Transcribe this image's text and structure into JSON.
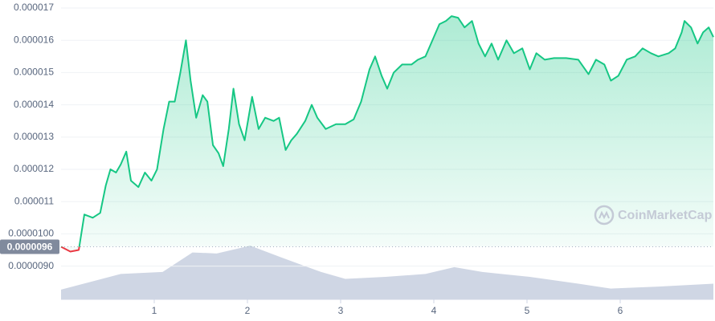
{
  "chart_data": [
    {
      "type": "line",
      "xlim": [
        0,
        7
      ],
      "xticks": [
        1,
        2,
        3,
        4,
        5,
        6
      ],
      "ylim": [
        7.97e-06,
        1.725e-05
      ],
      "yticks": [
        {
          "value": 9e-06,
          "label": "0.0000090"
        },
        {
          "value": 1e-05,
          "label": "0.0000100"
        },
        1.1e-05,
        1.2e-05,
        1.3e-05,
        1.4e-05,
        1.5e-05,
        1.6e-05,
        1.7e-05
      ],
      "grid": true,
      "current_price": 9.6e-06,
      "up_color": "#16c784",
      "down_color": "#ea3943",
      "watermark": "CoinMarketCap",
      "x": [
        0,
        0.1,
        0.19,
        0.25,
        0.34,
        0.42,
        0.48,
        0.53,
        0.59,
        0.64,
        0.7,
        0.75,
        0.83,
        0.9,
        0.97,
        1.03,
        1.1,
        1.16,
        1.22,
        1.28,
        1.34,
        1.39,
        1.45,
        1.52,
        1.57,
        1.63,
        1.69,
        1.74,
        1.8,
        1.85,
        1.91,
        1.97,
        2.05,
        2.12,
        2.19,
        2.28,
        2.34,
        2.41,
        2.47,
        2.53,
        2.62,
        2.69,
        2.75,
        2.84,
        2.95,
        3.05,
        3.14,
        3.22,
        3.31,
        3.37,
        3.44,
        3.5,
        3.57,
        3.66,
        3.76,
        3.83,
        3.91,
        4.0,
        4.06,
        4.13,
        4.19,
        4.26,
        4.33,
        4.41,
        4.48,
        4.55,
        4.62,
        4.69,
        4.78,
        4.86,
        4.95,
        5.03,
        5.1,
        5.19,
        5.29,
        5.42,
        5.55,
        5.66,
        5.74,
        5.83,
        5.9,
        5.98,
        6.07,
        6.16,
        6.24,
        6.33,
        6.41,
        6.52,
        6.59,
        6.66,
        6.69,
        6.76,
        6.83,
        6.89,
        6.95,
        7.0
      ],
      "values": [
        9.6e-06,
        9.45e-06,
        9.5e-06,
        1.06e-05,
        1.05e-05,
        1.065e-05,
        1.15e-05,
        1.2e-05,
        1.19e-05,
        1.215e-05,
        1.255e-05,
        1.165e-05,
        1.145e-05,
        1.19e-05,
        1.165e-05,
        1.2e-05,
        1.325e-05,
        1.41e-05,
        1.41e-05,
        1.5e-05,
        1.6e-05,
        1.475e-05,
        1.36e-05,
        1.43e-05,
        1.41e-05,
        1.275e-05,
        1.25e-05,
        1.21e-05,
        1.325e-05,
        1.45e-05,
        1.34e-05,
        1.29e-05,
        1.425e-05,
        1.325e-05,
        1.36e-05,
        1.35e-05,
        1.36e-05,
        1.26e-05,
        1.29e-05,
        1.31e-05,
        1.35e-05,
        1.4e-05,
        1.36e-05,
        1.325e-05,
        1.34e-05,
        1.34e-05,
        1.355e-05,
        1.41e-05,
        1.51e-05,
        1.55e-05,
        1.49e-05,
        1.45e-05,
        1.5e-05,
        1.525e-05,
        1.525e-05,
        1.54e-05,
        1.55e-05,
        1.61e-05,
        1.65e-05,
        1.66e-05,
        1.675e-05,
        1.67e-05,
        1.64e-05,
        1.66e-05,
        1.59e-05,
        1.55e-05,
        1.59e-05,
        1.54e-05,
        1.6e-05,
        1.56e-05,
        1.575e-05,
        1.51e-05,
        1.56e-05,
        1.54e-05,
        1.545e-05,
        1.545e-05,
        1.54e-05,
        1.495e-05,
        1.54e-05,
        1.525e-05,
        1.475e-05,
        1.49e-05,
        1.54e-05,
        1.55e-05,
        1.575e-05,
        1.56e-05,
        1.55e-05,
        1.56e-05,
        1.575e-05,
        1.625e-05,
        1.66e-05,
        1.64e-05,
        1.59e-05,
        1.625e-05,
        1.64e-05,
        1.61e-05
      ]
    },
    {
      "type": "area",
      "xlim": [
        0,
        7
      ],
      "ylim": [
        0,
        60
      ],
      "color": "#cfd6e4",
      "x": [
        0,
        0.64,
        1.09,
        1.41,
        1.67,
        2.03,
        2.36,
        2.79,
        3.05,
        3.48,
        3.91,
        4.22,
        4.52,
        5.03,
        5.55,
        5.9,
        6.41,
        7.0
      ],
      "values": [
        10,
        26,
        28,
        48,
        47,
        55,
        43,
        28,
        21,
        23,
        26,
        33,
        28,
        23,
        16,
        11,
        13,
        16
      ]
    }
  ]
}
